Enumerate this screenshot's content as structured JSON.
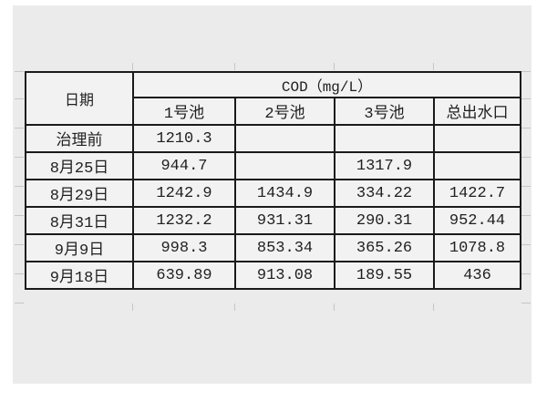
{
  "colors": {
    "panel_bg": "#ebebeb",
    "cell_bg": "#f2f2f2",
    "border": "#1a1a1a",
    "text": "#1f1f1f",
    "gridline": "#c6c6c6"
  },
  "table": {
    "date_header": "日期",
    "cod_header": "COD（mg/L）",
    "columns": [
      "1号池",
      "2号池",
      "3号池",
      "总出水口"
    ],
    "rows": [
      {
        "label": "治理前",
        "values": [
          "1210.3",
          "",
          "",
          ""
        ]
      },
      {
        "label": "8月25日",
        "values": [
          "944.7",
          "",
          "1317.9",
          ""
        ]
      },
      {
        "label": "8月29日",
        "values": [
          "1242.9",
          "1434.9",
          "334.22",
          "1422.7"
        ]
      },
      {
        "label": "8月31日",
        "values": [
          "1232.2",
          "931.31",
          "290.31",
          "952.44"
        ]
      },
      {
        "label": "9月9日",
        "values": [
          "998.3",
          "853.34",
          "365.26",
          "1078.8"
        ]
      },
      {
        "label": "9月18日",
        "values": [
          "639.89",
          "913.08",
          "189.55",
          "436"
        ]
      }
    ]
  },
  "chart_data": {
    "type": "table",
    "title": "COD（mg/L）",
    "row_header": "日期",
    "categories": [
      "治理前",
      "8月25日",
      "8月29日",
      "8月31日",
      "9月9日",
      "9月18日"
    ],
    "series": [
      {
        "name": "1号池",
        "values": [
          1210.3,
          944.7,
          1242.9,
          1232.2,
          998.3,
          639.89
        ]
      },
      {
        "name": "2号池",
        "values": [
          null,
          null,
          1434.9,
          931.31,
          853.34,
          913.08
        ]
      },
      {
        "name": "3号池",
        "values": [
          null,
          1317.9,
          334.22,
          290.31,
          365.26,
          189.55
        ]
      },
      {
        "name": "总出水口",
        "values": [
          null,
          null,
          1422.7,
          952.44,
          1078.8,
          436
        ]
      }
    ]
  }
}
